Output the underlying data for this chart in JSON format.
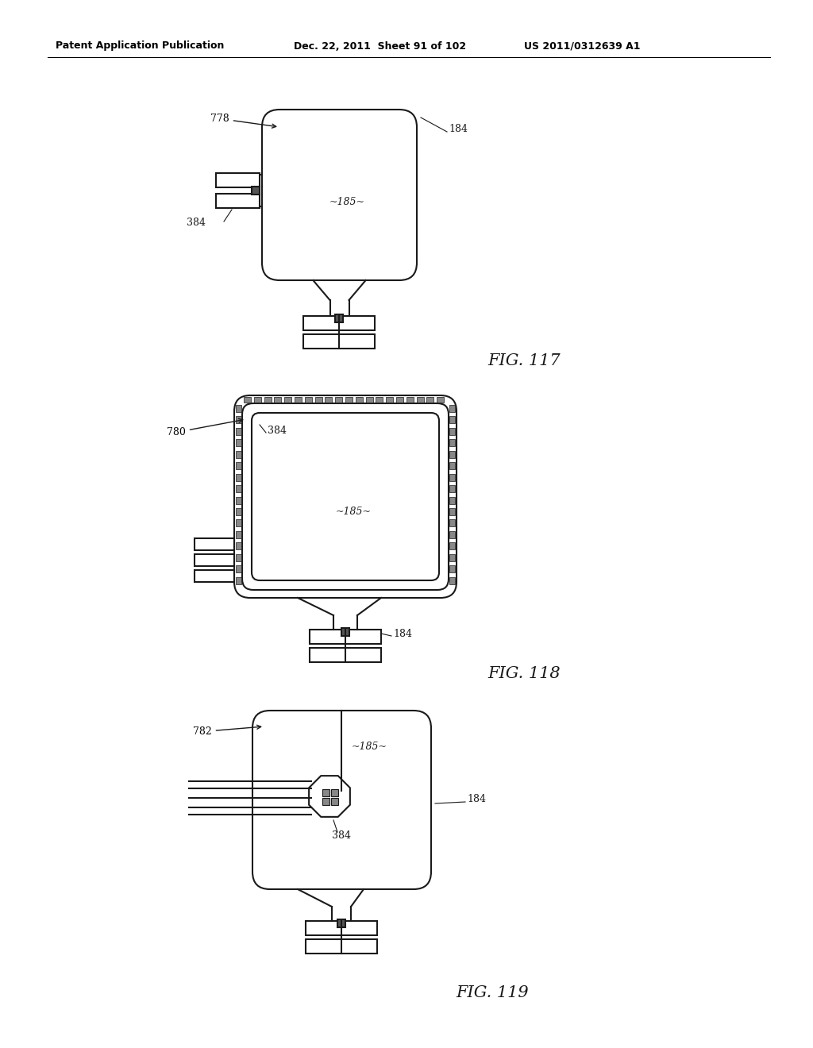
{
  "bg_color": "#ffffff",
  "line_color": "#1a1a1a",
  "header_text_left": "Patent Application Publication",
  "header_text_mid": "Dec. 22, 2011  Sheet 91 of 102",
  "header_text_right": "US 2011/0312639 A1",
  "fig117_label": "FIG. 117",
  "fig118_label": "FIG. 118",
  "fig119_label": "FIG. 119",
  "lw": 1.5
}
